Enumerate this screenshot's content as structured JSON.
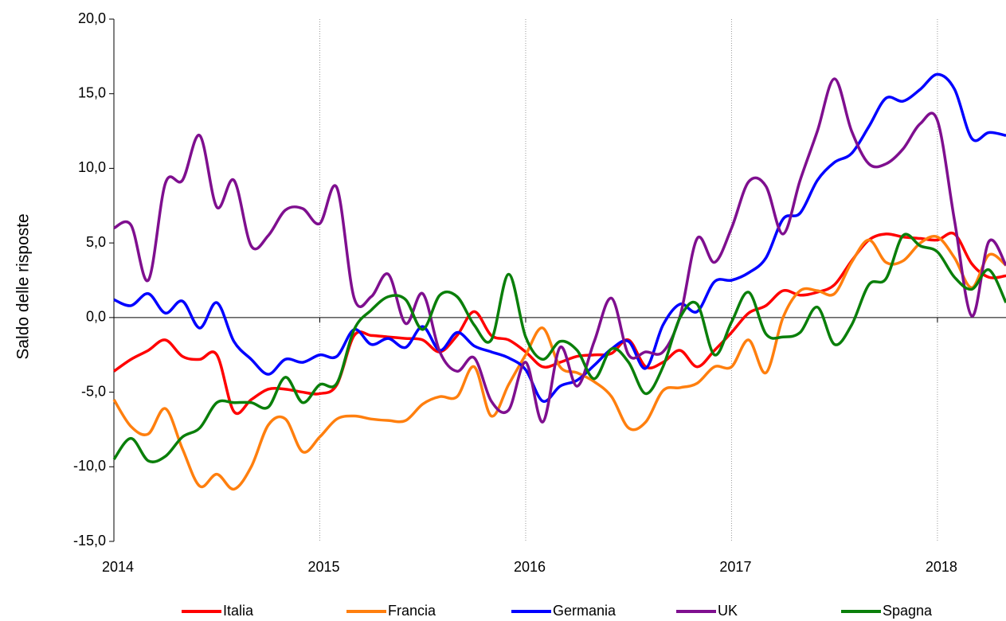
{
  "chart_data": {
    "type": "line",
    "y_label": "Saldo delle risposte",
    "x": [
      2014,
      2014.083,
      2014.167,
      2014.25,
      2014.333,
      2014.417,
      2014.5,
      2014.583,
      2014.667,
      2014.75,
      2014.833,
      2014.917,
      2015,
      2015.083,
      2015.167,
      2015.25,
      2015.333,
      2015.417,
      2015.5,
      2015.583,
      2015.667,
      2015.75,
      2015.833,
      2015.917,
      2016,
      2016.083,
      2016.167,
      2016.25,
      2016.333,
      2016.417,
      2016.5,
      2016.583,
      2016.667,
      2016.75,
      2016.833,
      2016.917,
      2017,
      2017.083,
      2017.167,
      2017.25,
      2017.333,
      2017.417,
      2017.5,
      2017.583,
      2017.667,
      2017.75,
      2017.833,
      2017.917,
      2018,
      2018.083,
      2018.167,
      2018.25,
      2018.333
    ],
    "series": [
      {
        "name": "Italia",
        "color": "#ff0000",
        "values": [
          -3.6,
          -2.8,
          -2.2,
          -1.5,
          -2.6,
          -2.8,
          -2.5,
          -6.3,
          -5.5,
          -4.8,
          -4.8,
          -5.0,
          -5.1,
          -4.5,
          -1.2,
          -1.2,
          -1.3,
          -1.4,
          -1.5,
          -2.3,
          -1.2,
          0.4,
          -1.2,
          -1.5,
          -2.3,
          -3.3,
          -3.0,
          -2.6,
          -2.5,
          -2.4,
          -1.5,
          -3.3,
          -3.0,
          -2.2,
          -3.3,
          -2.2,
          -1.0,
          0.3,
          0.8,
          1.8,
          1.5,
          1.7,
          2.2,
          3.8,
          5.2,
          5.6,
          5.4,
          5.3,
          5.2,
          5.6,
          3.6,
          2.7,
          2.8
        ]
      },
      {
        "name": "Francia",
        "color": "#ff7f0e",
        "values": [
          -5.5,
          -7.3,
          -7.8,
          -6.1,
          -8.8,
          -11.3,
          -10.5,
          -11.5,
          -10.0,
          -7.2,
          -6.8,
          -9.0,
          -8.0,
          -6.8,
          -6.6,
          -6.8,
          -6.9,
          -6.9,
          -5.8,
          -5.3,
          -5.3,
          -3.3,
          -6.6,
          -4.5,
          -2.5,
          -0.7,
          -3.3,
          -3.7,
          -4.3,
          -5.3,
          -7.4,
          -7.0,
          -4.9,
          -4.7,
          -4.4,
          -3.3,
          -3.3,
          -1.5,
          -3.7,
          0.0,
          1.8,
          1.8,
          1.6,
          3.7,
          5.2,
          3.7,
          3.8,
          5.0,
          5.4,
          4.0,
          2.0,
          4.2,
          3.5
        ]
      },
      {
        "name": "Germania",
        "color": "#0000ff",
        "values": [
          1.2,
          0.8,
          1.6,
          0.3,
          1.1,
          -0.7,
          1.0,
          -1.6,
          -2.8,
          -3.8,
          -2.8,
          -3.0,
          -2.5,
          -2.6,
          -0.8,
          -1.8,
          -1.4,
          -2.0,
          -0.6,
          -2.2,
          -1.0,
          -1.9,
          -2.3,
          -2.7,
          -3.5,
          -5.6,
          -4.6,
          -4.2,
          -3.2,
          -2.1,
          -1.6,
          -3.4,
          -0.5,
          0.9,
          0.4,
          2.4,
          2.5,
          3.0,
          4.0,
          6.6,
          7.0,
          9.2,
          10.4,
          11.0,
          12.8,
          14.7,
          14.5,
          15.3,
          16.3,
          15.3,
          12.0,
          12.4,
          12.2
        ]
      },
      {
        "name": "UK",
        "color": "#7f0f8f",
        "values": [
          6.0,
          6.2,
          2.5,
          9.0,
          9.2,
          12.2,
          7.4,
          9.2,
          4.8,
          5.5,
          7.2,
          7.3,
          6.3,
          8.7,
          1.3,
          1.4,
          2.9,
          -0.4,
          1.6,
          -2.3,
          -3.6,
          -2.7,
          -5.6,
          -6.2,
          -3.0,
          -7.0,
          -2.0,
          -4.6,
          -1.6,
          1.3,
          -2.5,
          -2.3,
          -2.3,
          0.1,
          5.3,
          3.7,
          6.0,
          9.1,
          8.8,
          5.6,
          9.2,
          12.5,
          16.0,
          12.5,
          10.3,
          10.3,
          11.3,
          13.0,
          13.2,
          6.5,
          0.1,
          5.1,
          3.5
        ]
      },
      {
        "name": "Spagna",
        "color": "#0a7f0a",
        "values": [
          -9.5,
          -8.1,
          -9.6,
          -9.3,
          -8.0,
          -7.4,
          -5.7,
          -5.7,
          -5.7,
          -6.0,
          -4.0,
          -5.7,
          -4.5,
          -4.4,
          -0.8,
          0.5,
          1.4,
          1.2,
          -0.8,
          1.5,
          1.4,
          -0.5,
          -1.5,
          2.9,
          -1.3,
          -2.8,
          -1.6,
          -2.2,
          -4.1,
          -2.1,
          -3.0,
          -5.1,
          -3.3,
          0.0,
          0.9,
          -2.5,
          -0.3,
          1.7,
          -1.1,
          -1.3,
          -1.0,
          0.7,
          -1.8,
          -0.5,
          2.2,
          2.6,
          5.5,
          4.8,
          4.4,
          2.7,
          1.9,
          3.2,
          1.0
        ]
      }
    ],
    "xlim": [
      2014,
      2018.333
    ],
    "xticks": [
      2014,
      2015,
      2016,
      2017,
      2018
    ],
    "ylim": [
      -15,
      20
    ],
    "yticks": [
      {
        "value": -15,
        "label": "-15,0"
      },
      {
        "value": -10,
        "label": "-10,0"
      },
      {
        "value": -5,
        "label": "-5,0"
      },
      {
        "value": 0,
        "label": "0,0"
      },
      {
        "value": 5,
        "label": "5,0"
      },
      {
        "value": 10,
        "label": "10,0"
      },
      {
        "value": 15,
        "label": "15,0"
      },
      {
        "value": 20,
        "label": "20,0"
      }
    ],
    "grid_x": true,
    "legend": "bottom"
  }
}
